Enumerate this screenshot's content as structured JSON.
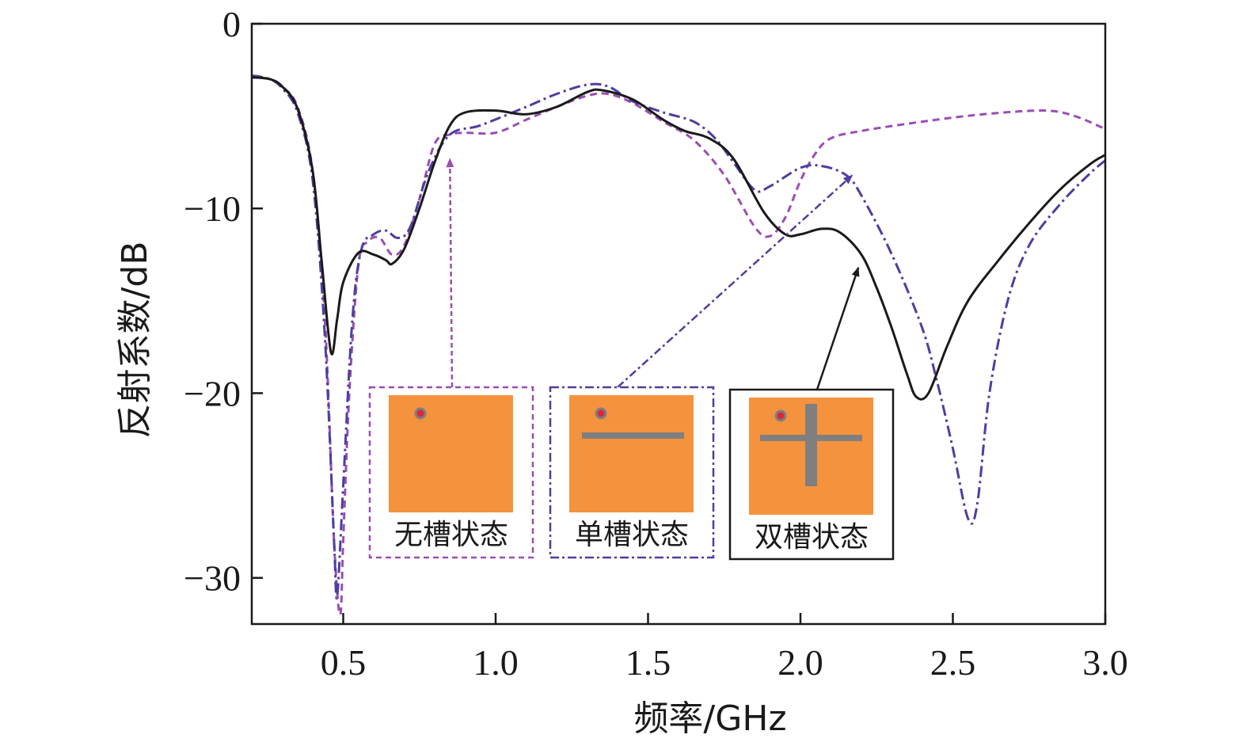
{
  "chart_data": {
    "type": "line",
    "xlabel": "频率/GHz",
    "ylabel": "反射系数/dB",
    "xlim": [
      0.2,
      3.0
    ],
    "ylim": [
      -32.5,
      0
    ],
    "xticks": [
      0.5,
      1.0,
      1.5,
      2.0,
      2.5,
      3.0
    ],
    "xtick_labels": [
      "0.5",
      "1.0",
      "1.5",
      "2.0",
      "2.5",
      "3.0"
    ],
    "yticks": [
      0,
      -10,
      -20,
      -30
    ],
    "ytick_labels": [
      "0",
      "−10",
      "−20",
      "−30"
    ],
    "grid": false,
    "series": [
      {
        "name": "无槽状态",
        "color": "#9b4db3",
        "style": "dashed",
        "points": [
          [
            0.2,
            -2.9
          ],
          [
            0.26,
            -3.0
          ],
          [
            0.3,
            -3.4
          ],
          [
            0.35,
            -4.5
          ],
          [
            0.4,
            -8.0
          ],
          [
            0.44,
            -16.0
          ],
          [
            0.47,
            -28.0
          ],
          [
            0.49,
            -32.0
          ],
          [
            0.5,
            -28.0
          ],
          [
            0.52,
            -20.0
          ],
          [
            0.55,
            -13.0
          ],
          [
            0.58,
            -11.8
          ],
          [
            0.62,
            -11.6
          ],
          [
            0.66,
            -12.5
          ],
          [
            0.7,
            -12.0
          ],
          [
            0.75,
            -9.5
          ],
          [
            0.8,
            -6.5
          ],
          [
            0.85,
            -6.0
          ],
          [
            0.9,
            -5.9
          ],
          [
            1.0,
            -5.9
          ],
          [
            1.1,
            -5.2
          ],
          [
            1.2,
            -4.5
          ],
          [
            1.3,
            -3.9
          ],
          [
            1.37,
            -3.8
          ],
          [
            1.45,
            -4.3
          ],
          [
            1.55,
            -5.3
          ],
          [
            1.65,
            -6.3
          ],
          [
            1.75,
            -8.2
          ],
          [
            1.85,
            -11.0
          ],
          [
            1.9,
            -11.5
          ],
          [
            1.95,
            -10.5
          ],
          [
            2.0,
            -8.5
          ],
          [
            2.05,
            -7.0
          ],
          [
            2.1,
            -6.2
          ],
          [
            2.2,
            -5.8
          ],
          [
            2.4,
            -5.3
          ],
          [
            2.6,
            -4.9
          ],
          [
            2.8,
            -4.7
          ],
          [
            2.9,
            -5.0
          ],
          [
            3.0,
            -5.7
          ]
        ]
      },
      {
        "name": "单槽状态",
        "color": "#4b3fa0",
        "style": "dashdot",
        "points": [
          [
            0.2,
            -2.8
          ],
          [
            0.26,
            -3.0
          ],
          [
            0.3,
            -3.5
          ],
          [
            0.35,
            -4.8
          ],
          [
            0.4,
            -8.5
          ],
          [
            0.44,
            -17.0
          ],
          [
            0.47,
            -28.0
          ],
          [
            0.48,
            -31.0
          ],
          [
            0.5,
            -25.0
          ],
          [
            0.53,
            -16.0
          ],
          [
            0.56,
            -12.2
          ],
          [
            0.6,
            -11.4
          ],
          [
            0.64,
            -11.2
          ],
          [
            0.68,
            -11.6
          ],
          [
            0.72,
            -11.0
          ],
          [
            0.78,
            -8.0
          ],
          [
            0.85,
            -6.0
          ],
          [
            0.95,
            -5.5
          ],
          [
            1.1,
            -4.5
          ],
          [
            1.2,
            -3.8
          ],
          [
            1.3,
            -3.3
          ],
          [
            1.37,
            -3.4
          ],
          [
            1.45,
            -4.2
          ],
          [
            1.55,
            -4.8
          ],
          [
            1.65,
            -5.3
          ],
          [
            1.72,
            -6.2
          ],
          [
            1.78,
            -7.5
          ],
          [
            1.85,
            -9.0
          ],
          [
            1.9,
            -8.8
          ],
          [
            2.0,
            -7.8
          ],
          [
            2.07,
            -7.7
          ],
          [
            2.15,
            -8.2
          ],
          [
            2.2,
            -9.3
          ],
          [
            2.3,
            -12.5
          ],
          [
            2.4,
            -16.5
          ],
          [
            2.45,
            -19.5
          ],
          [
            2.5,
            -23.0
          ],
          [
            2.55,
            -26.8
          ],
          [
            2.58,
            -26.0
          ],
          [
            2.62,
            -20.0
          ],
          [
            2.68,
            -15.0
          ],
          [
            2.75,
            -12.0
          ],
          [
            2.85,
            -9.8
          ],
          [
            2.95,
            -8.1
          ],
          [
            3.0,
            -7.4
          ]
        ]
      },
      {
        "name": "双槽状态",
        "color": "#1a1a1a",
        "style": "solid",
        "points": [
          [
            0.2,
            -2.9
          ],
          [
            0.26,
            -3.0
          ],
          [
            0.3,
            -3.4
          ],
          [
            0.35,
            -4.6
          ],
          [
            0.4,
            -8.0
          ],
          [
            0.43,
            -13.0
          ],
          [
            0.46,
            -17.8
          ],
          [
            0.48,
            -16.0
          ],
          [
            0.5,
            -14.0
          ],
          [
            0.55,
            -12.4
          ],
          [
            0.6,
            -12.5
          ],
          [
            0.64,
            -12.8
          ],
          [
            0.66,
            -13.0
          ],
          [
            0.7,
            -12.2
          ],
          [
            0.75,
            -10.0
          ],
          [
            0.8,
            -7.5
          ],
          [
            0.85,
            -5.5
          ],
          [
            0.9,
            -4.8
          ],
          [
            1.0,
            -4.7
          ],
          [
            1.1,
            -4.9
          ],
          [
            1.2,
            -4.5
          ],
          [
            1.3,
            -3.7
          ],
          [
            1.35,
            -3.6
          ],
          [
            1.45,
            -4.1
          ],
          [
            1.55,
            -5.2
          ],
          [
            1.62,
            -5.8
          ],
          [
            1.7,
            -6.2
          ],
          [
            1.78,
            -7.3
          ],
          [
            1.88,
            -10.2
          ],
          [
            1.95,
            -11.4
          ],
          [
            2.0,
            -11.4
          ],
          [
            2.07,
            -11.1
          ],
          [
            2.13,
            -11.3
          ],
          [
            2.2,
            -12.5
          ],
          [
            2.25,
            -14.3
          ],
          [
            2.3,
            -16.5
          ],
          [
            2.35,
            -19.0
          ],
          [
            2.38,
            -20.2
          ],
          [
            2.42,
            -20.0
          ],
          [
            2.48,
            -17.5
          ],
          [
            2.55,
            -15.0
          ],
          [
            2.65,
            -12.8
          ],
          [
            2.75,
            -10.8
          ],
          [
            2.85,
            -9.0
          ],
          [
            2.95,
            -7.6
          ],
          [
            3.0,
            -7.1
          ]
        ]
      }
    ],
    "insets": [
      {
        "label": "无槽状态",
        "slots": "none",
        "border_color": "#9b4db3",
        "border_style": "dashed",
        "arrow_to": [
          0.85,
          -7.3
        ]
      },
      {
        "label": "单槽状态",
        "slots": "horizontal",
        "border_color": "#4b3fa0",
        "border_style": "dashdot",
        "arrow_to": [
          2.17,
          -8.2
        ]
      },
      {
        "label": "双槽状态",
        "slots": "cross",
        "border_color": "#1a1a1a",
        "border_style": "solid",
        "arrow_to": [
          2.19,
          -13.2
        ]
      }
    ],
    "patch_color": "#f5923e",
    "slot_color": "#7f7f7f",
    "feed_color": "#d9283a"
  }
}
